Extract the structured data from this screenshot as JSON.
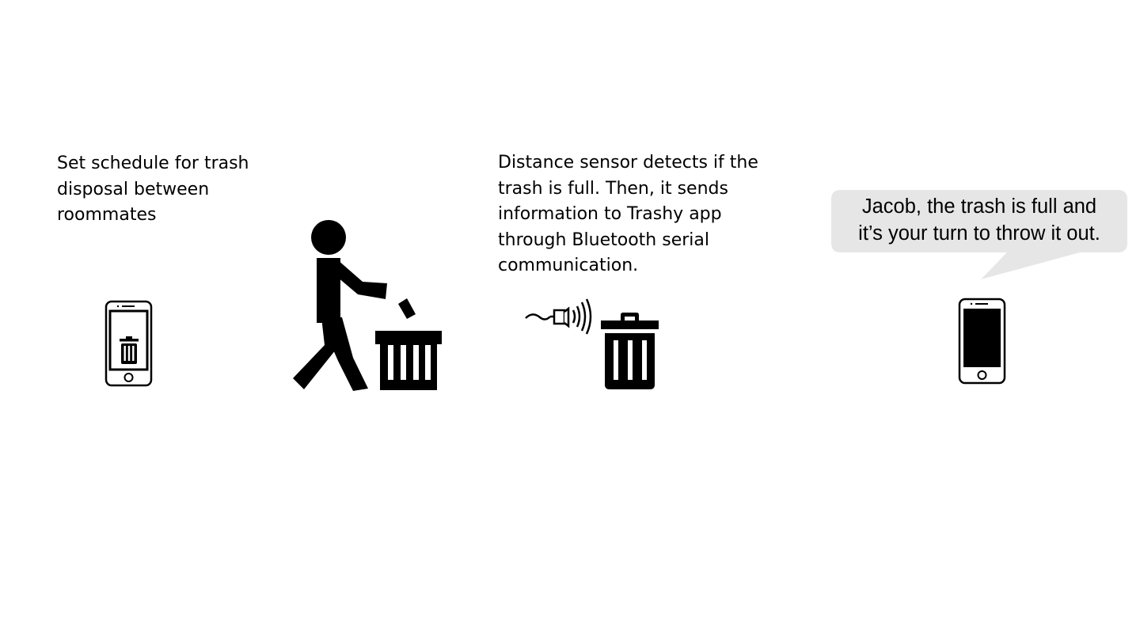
{
  "steps": [
    {
      "caption": "Set schedule for trash disposal between roommates",
      "icon": "phone-with-trash-icon"
    },
    {
      "caption": "",
      "icon": "person-throwing-trash-icon"
    },
    {
      "caption": "Distance sensor detects if the trash is full. Then, it sends information to Trashy app through Bluetooth serial communication.",
      "icon": "distance-sensor-trash-can-icon"
    },
    {
      "caption": "",
      "icon": "phone-notification-icon"
    }
  ],
  "notification": {
    "line1": "Jacob, the trash is full and",
    "line2": "it’s your turn to throw it out."
  },
  "colors": {
    "ink": "#000000",
    "bubble": "#e6e6e6",
    "background": "#ffffff"
  }
}
